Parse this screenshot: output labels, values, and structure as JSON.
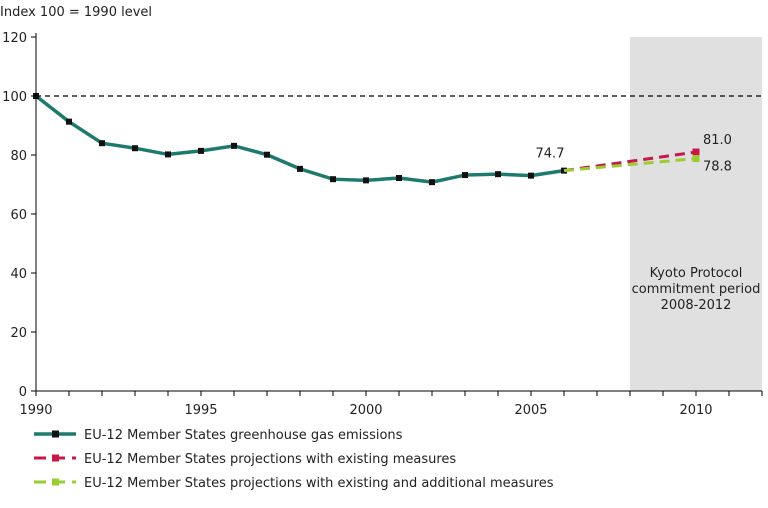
{
  "chart_data": {
    "type": "line",
    "ylabel": "Index 100 = 1990 level",
    "xlim": [
      1990,
      2012
    ],
    "ylim": [
      0,
      120
    ],
    "x_ticks": [
      1990,
      1995,
      2000,
      2005,
      2010
    ],
    "y_ticks": [
      0,
      20,
      40,
      60,
      80,
      100,
      120
    ],
    "x_minor_ticks": [
      1990,
      1991,
      1992,
      1993,
      1994,
      1995,
      1996,
      1997,
      1998,
      1999,
      2000,
      2001,
      2002,
      2003,
      2004,
      2005,
      2006,
      2007,
      2008,
      2009,
      2010,
      2011,
      2012
    ],
    "grid": false,
    "reference_line": {
      "y": 100,
      "style": "dashed"
    },
    "shaded_region": {
      "x_start": 2008,
      "x_end": 2012,
      "label_lines": [
        "Kyoto Protocol",
        "commitment period",
        "2008-2012"
      ],
      "color": "#e0e0e0"
    },
    "series": [
      {
        "name": "EU-12 Member States greenhouse gas emissions",
        "color": "#1f7a6e",
        "style": "solid",
        "x": [
          1990,
          1991,
          1992,
          1993,
          1994,
          1995,
          1996,
          1997,
          1998,
          1999,
          2000,
          2001,
          2002,
          2003,
          2004,
          2005,
          2006
        ],
        "y": [
          100,
          91.3,
          84.0,
          82.3,
          80.2,
          81.4,
          83.1,
          80.1,
          75.3,
          71.8,
          71.4,
          72.2,
          70.8,
          73.2,
          73.5,
          73.0,
          74.7
        ]
      },
      {
        "name": "EU-12 Member States projections with existing measures",
        "color": "#c8174a",
        "style": "dashed",
        "x": [
          2006,
          2010
        ],
        "y": [
          74.7,
          81.0
        ]
      },
      {
        "name": "EU-12 Member States projections with existing and additional measures",
        "color": "#9acd32",
        "style": "dashed",
        "x": [
          2006,
          2010
        ],
        "y": [
          74.7,
          78.8
        ]
      }
    ],
    "annotations": [
      {
        "text": "74.7",
        "x": 2006,
        "y": 74.7
      },
      {
        "text": "81.0",
        "x": 2010,
        "y": 81.0
      },
      {
        "text": "78.8",
        "x": 2010,
        "y": 78.8
      }
    ],
    "legend_position": "bottom"
  }
}
